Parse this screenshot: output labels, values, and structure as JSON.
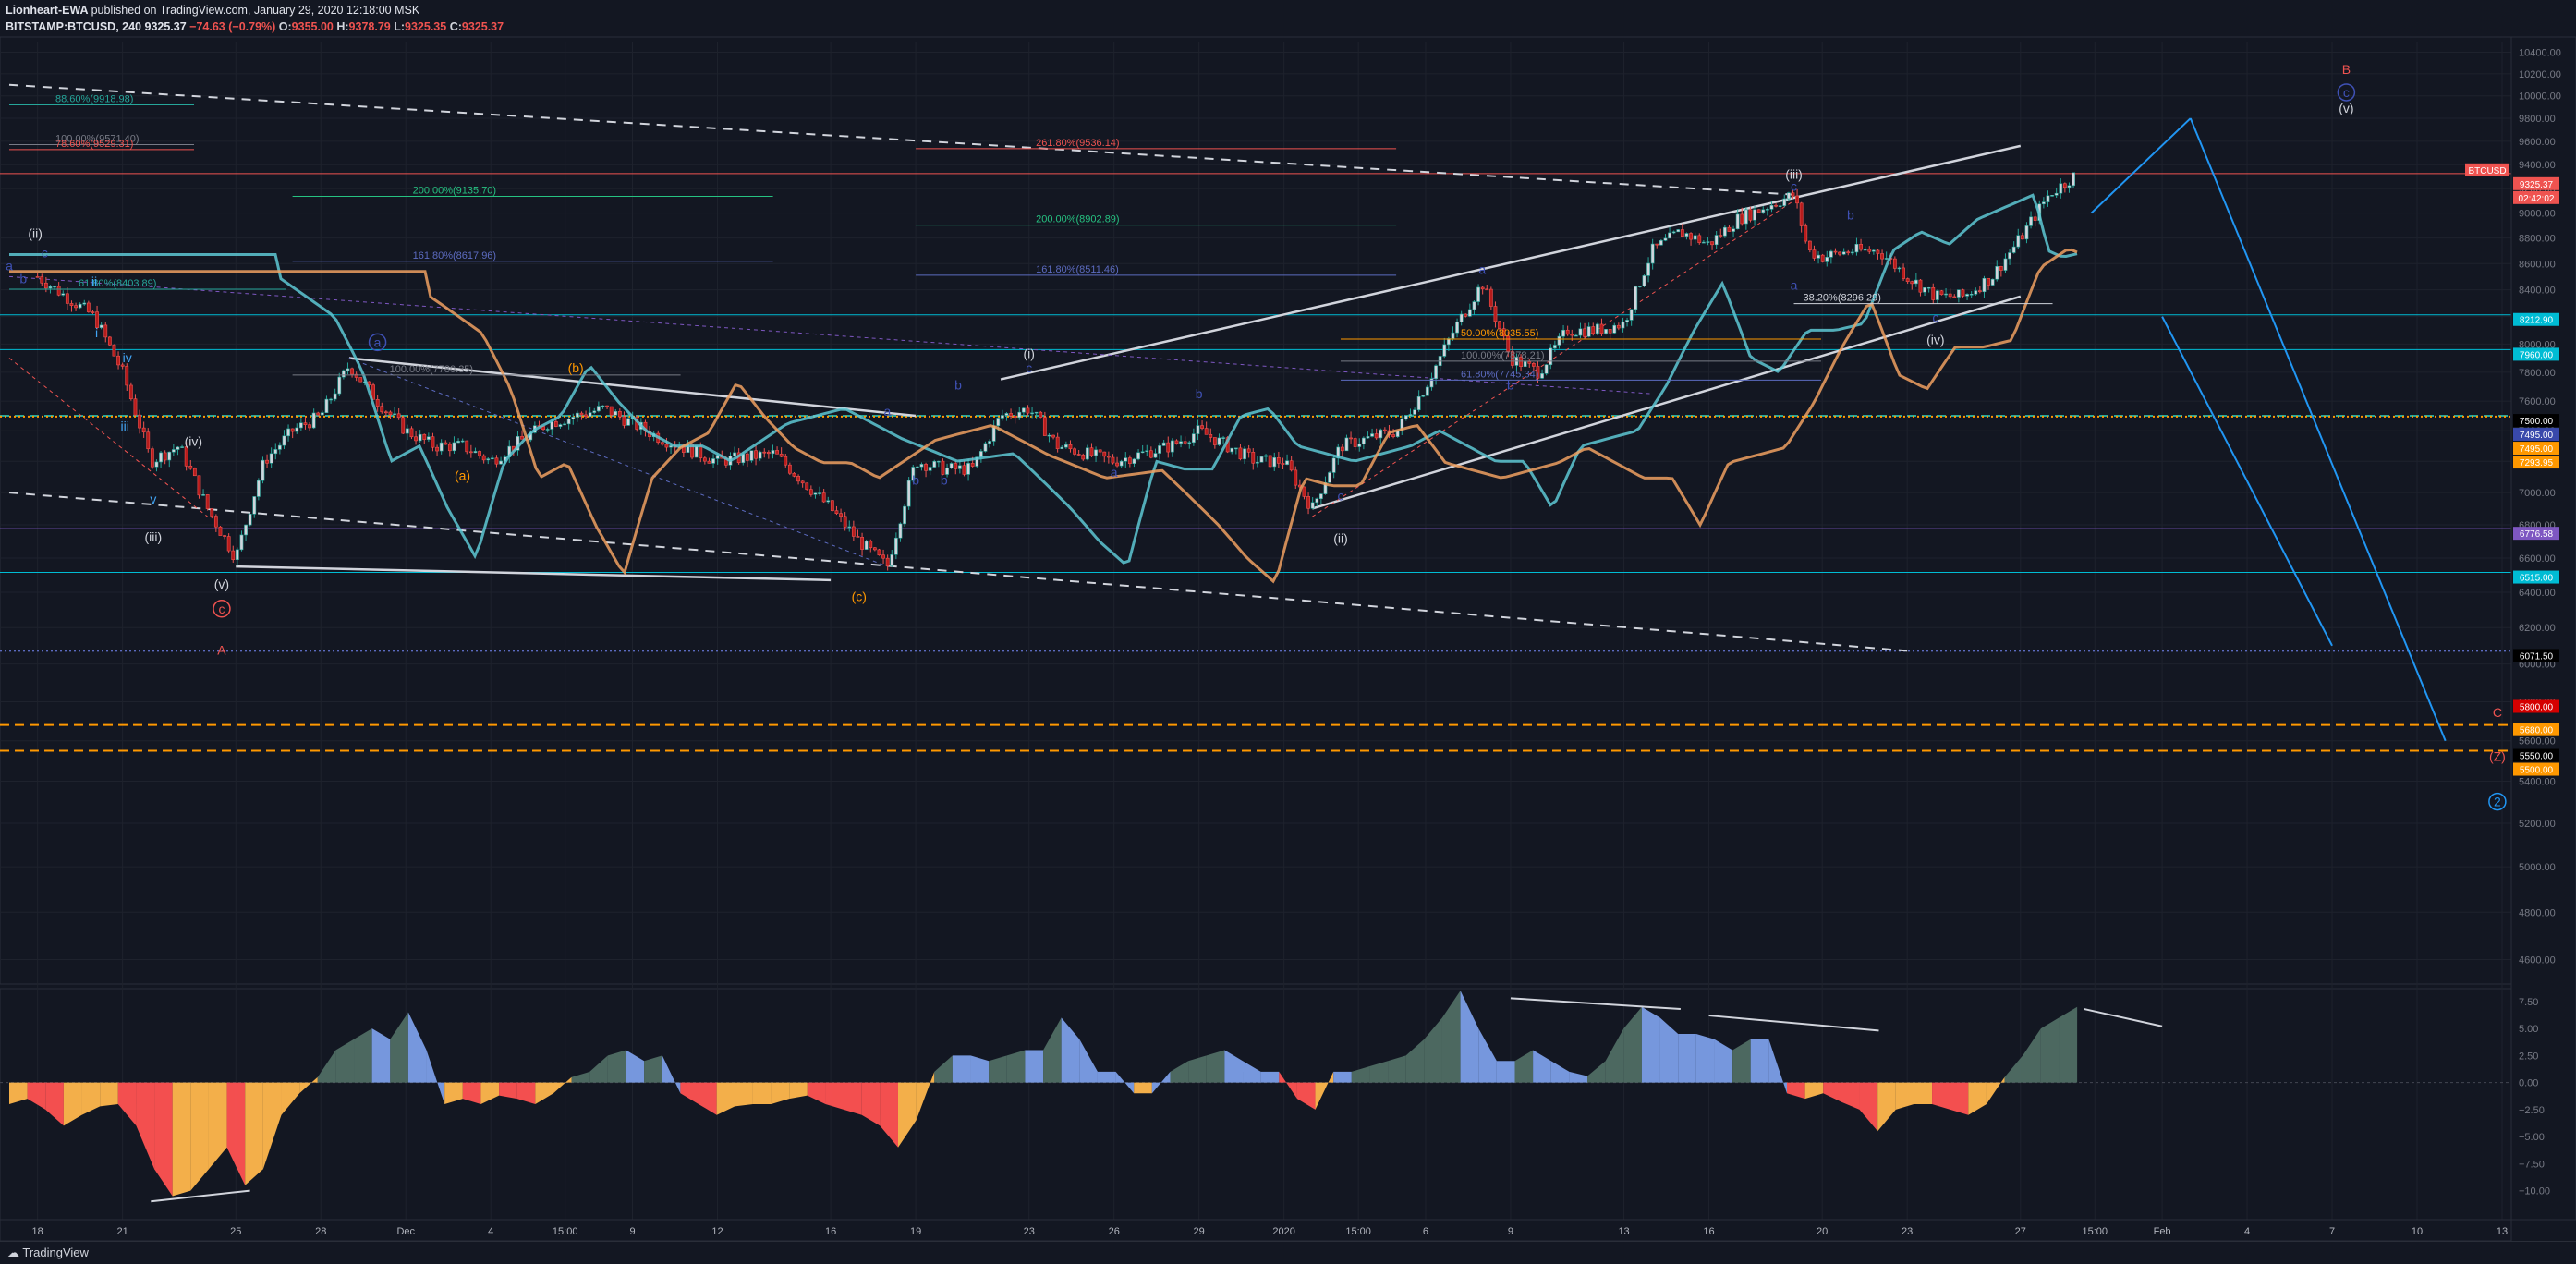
{
  "header": {
    "author": "Lionheart-EWA",
    "published": "published on TradingView.com, January 29, 2020 12:18:00 MSK",
    "symbol": "BITSTAMP:BTCUSD, 240",
    "last": "9325.37",
    "change": "−74.63 (−0.79%)",
    "o_label": "O:",
    "o": "9355.00",
    "h_label": "H:",
    "h": "9378.79",
    "l_label": "L:",
    "l": "9325.35",
    "c_label": "C:",
    "c": "9325.37"
  },
  "footer": {
    "brand": "TradingView"
  },
  "colors": {
    "background": "#131722",
    "grid": "#1e222d",
    "up_candle": "#26a69a",
    "down_candle": "#ef5350",
    "candle_body_up": "#d1d4dc",
    "candle_body_down": "#b71c1c",
    "ma_teal": "#5ec8d4",
    "ma_orange": "#f0a060",
    "osc_pos": "#4f6d64",
    "osc_pos_light": "#7b9ee8",
    "osc_neg": "#ff5252",
    "osc_neg_light": "#ffb74d"
  },
  "chart_data": [
    {
      "type": "candlestick",
      "title": "BITSTAMP:BTCUSD, 240",
      "y_scale": "log",
      "ylim": [
        4500,
        10500
      ],
      "y_ticks": [
        "10400.00",
        "10200.00",
        "10000.00",
        "9800.00",
        "9600.00",
        "9400.00",
        "9200.00",
        "9000.00",
        "8800.00",
        "8600.00",
        "8400.00",
        "8200.00",
        "8000.00",
        "7800.00",
        "7600.00",
        "7400.00",
        "7200.00",
        "7000.00",
        "6800.00",
        "6600.00",
        "6400.00",
        "6200.00",
        "6000.00",
        "5800.00",
        "5600.00",
        "5400.00",
        "5200.00",
        "5000.00",
        "4800.00",
        "4600.00"
      ],
      "x_ticks": [
        "18",
        "21",
        "25",
        "28",
        "Dec",
        "4",
        "15:00",
        "9",
        "12",
        "16",
        "19",
        "23",
        "26",
        "29",
        "2020",
        "15:00",
        "6",
        "9",
        "13",
        "16",
        "20",
        "23",
        "27",
        "15:00",
        "Feb",
        "4",
        "7",
        "10",
        "13"
      ],
      "price_path": [
        [
          "2019-11-18",
          8500
        ],
        [
          "2019-11-20",
          8200
        ],
        [
          "2019-11-21",
          7800
        ],
        [
          "2019-11-22",
          7200
        ],
        [
          "2019-11-23",
          7300
        ],
        [
          "2019-11-24",
          6900
        ],
        [
          "2019-11-25",
          6600
        ],
        [
          "2019-11-26",
          7200
        ],
        [
          "2019-11-27",
          7400
        ],
        [
          "2019-11-28",
          7500
        ],
        [
          "2019-11-29",
          7850
        ],
        [
          "2019-11-30",
          7600
        ],
        [
          "2019-12-01",
          7400
        ],
        [
          "2019-12-02",
          7300
        ],
        [
          "2019-12-03",
          7300
        ],
        [
          "2019-12-04",
          7200
        ],
        [
          "2019-12-06",
          7450
        ],
        [
          "2019-12-08",
          7550
        ],
        [
          "2019-12-10",
          7350
        ],
        [
          "2019-12-12",
          7200
        ],
        [
          "2019-12-14",
          7250
        ],
        [
          "2019-12-16",
          6900
        ],
        [
          "2019-12-17",
          6700
        ],
        [
          "2019-12-18",
          6550
        ],
        [
          "2019-12-19",
          7200
        ],
        [
          "2019-12-20",
          7150
        ],
        [
          "2019-12-21",
          7150
        ],
        [
          "2019-12-22",
          7500
        ],
        [
          "2019-12-23",
          7550
        ],
        [
          "2019-12-24",
          7300
        ],
        [
          "2019-12-26",
          7200
        ],
        [
          "2019-12-28",
          7300
        ],
        [
          "2019-12-29",
          7400
        ],
        [
          "2019-12-30",
          7300
        ],
        [
          "2019-12-31",
          7200
        ],
        [
          "2020-01-01",
          7200
        ],
        [
          "2020-01-02",
          6900
        ],
        [
          "2020-01-03",
          7300
        ],
        [
          "2020-01-04",
          7350
        ],
        [
          "2020-01-05",
          7400
        ],
        [
          "2020-01-06",
          7700
        ],
        [
          "2020-01-07",
          8100
        ],
        [
          "2020-01-08",
          8450
        ],
        [
          "2020-01-09",
          7900
        ],
        [
          "2020-01-10",
          7800
        ],
        [
          "2020-01-11",
          8100
        ],
        [
          "2020-01-12",
          8100
        ],
        [
          "2020-01-13",
          8150
        ],
        [
          "2020-01-14",
          8700
        ],
        [
          "2020-01-15",
          8850
        ],
        [
          "2020-01-16",
          8750
        ],
        [
          "2020-01-17",
          8950
        ],
        [
          "2020-01-18",
          9050
        ],
        [
          "2020-01-19",
          9150
        ],
        [
          "2020-01-19T12",
          8700
        ],
        [
          "2020-01-20",
          8650
        ],
        [
          "2020-01-21",
          8700
        ],
        [
          "2020-01-22",
          8700
        ],
        [
          "2020-01-23",
          8500
        ],
        [
          "2020-01-24",
          8350
        ],
        [
          "2020-01-25",
          8350
        ],
        [
          "2020-01-26",
          8500
        ],
        [
          "2020-01-27",
          8800
        ],
        [
          "2020-01-28",
          9150
        ],
        [
          "2020-01-29",
          9325
        ]
      ],
      "price_labels": [
        {
          "text": "BTCUSD",
          "bg": "#ef5350"
        },
        {
          "text": "9325.37",
          "bg": "#ef5350"
        },
        {
          "text": "02:42:02",
          "bg": "#ef5350"
        },
        {
          "text": "8212.90",
          "bg": "#00bcd4"
        },
        {
          "text": "7960.00",
          "bg": "#00bcd4"
        },
        {
          "text": "7500.00",
          "bg": "#000000"
        },
        {
          "text": "7495.00",
          "bg": "#3949ab"
        },
        {
          "text": "7495.00",
          "bg": "#ff9800"
        },
        {
          "text": "7293.95",
          "bg": "#ff9800"
        },
        {
          "text": "6776.58",
          "bg": "#7e57c2"
        },
        {
          "text": "6515.00",
          "bg": "#00bcd4"
        },
        {
          "text": "6071.50",
          "bg": "#000000"
        },
        {
          "text": "5800.00",
          "bg": "#d50000"
        },
        {
          "text": "5680.00",
          "bg": "#ff9800"
        },
        {
          "text": "5550.00",
          "bg": "#000000"
        },
        {
          "text": "5500.00",
          "bg": "#ff9800"
        }
      ],
      "horizontal_levels": [
        {
          "price": 8212.9,
          "color": "#00bcd4",
          "style": "solid"
        },
        {
          "price": 7960.0,
          "color": "#00bcd4",
          "style": "solid"
        },
        {
          "price": 7500.0,
          "color": "#26a69a",
          "style": "dashed"
        },
        {
          "price": 7495.0,
          "color": "#ff9800",
          "style": "dotted"
        },
        {
          "price": 6776.58,
          "color": "#7e57c2",
          "style": "solid"
        },
        {
          "price": 6515.0,
          "color": "#00bcd4",
          "style": "solid"
        },
        {
          "price": 6071.5,
          "color": "#5c6bc0",
          "style": "dotted"
        },
        {
          "price": 5680.0,
          "color": "#ff9800",
          "style": "dashed"
        },
        {
          "price": 5550.0,
          "color": "#ff9800",
          "style": "dashed"
        },
        {
          "price": 9325.37,
          "color": "#ef5350",
          "style": "solid"
        }
      ],
      "fib_labels": [
        {
          "text": "88.60%(9918.98)",
          "color": "#26a69a"
        },
        {
          "text": "100.00%(9571.40)",
          "color": "#787b86"
        },
        {
          "text": "78.60%(9529.31)",
          "color": "#ef5350"
        },
        {
          "text": "261.80%(9536.14)",
          "color": "#ef5350"
        },
        {
          "text": "200.00%(9135.70)",
          "color": "#26c281"
        },
        {
          "text": "200.00%(8902.89)",
          "color": "#26c281"
        },
        {
          "text": "161.80%(8617.96)",
          "color": "#5c6bc0"
        },
        {
          "text": "161.80%(8511.46)",
          "color": "#5c6bc0"
        },
        {
          "text": "61.80%(8403.89)",
          "color": "#26a69a"
        },
        {
          "text": "38.20%(8296.29)",
          "color": "#d1d4dc"
        },
        {
          "text": "100.00%(7878.21)",
          "color": "#787b86"
        },
        {
          "text": "100.00%(7780.35)",
          "color": "#787b86"
        },
        {
          "text": "50.00%(8035.55)",
          "color": "#ff9800"
        },
        {
          "text": "61.80%(7745.34)",
          "color": "#5c6bc0"
        }
      ],
      "wave_labels": [
        {
          "text": "(ii)",
          "color": "#d1d4dc"
        },
        {
          "text": "c",
          "color": "#3f51b5"
        },
        {
          "text": "a",
          "color": "#3f51b5"
        },
        {
          "text": "b",
          "color": "#3f51b5"
        },
        {
          "text": "ii",
          "color": "#42a5f5"
        },
        {
          "text": "i",
          "color": "#42a5f5"
        },
        {
          "text": "iv",
          "color": "#42a5f5"
        },
        {
          "text": "iii",
          "color": "#42a5f5"
        },
        {
          "text": "v",
          "color": "#42a5f5"
        },
        {
          "text": "(iv)",
          "color": "#d1d4dc"
        },
        {
          "text": "(iii)",
          "color": "#d1d4dc"
        },
        {
          "text": "(v)",
          "color": "#d1d4dc"
        },
        {
          "text": "c",
          "color": "#ef5350"
        },
        {
          "text": "A",
          "color": "#ef5350"
        },
        {
          "text": "a",
          "color": "#3f51b5"
        },
        {
          "text": "(b)",
          "color": "#ff9800"
        },
        {
          "text": "(a)",
          "color": "#ff9800"
        },
        {
          "text": "(c)",
          "color": "#ff9800"
        },
        {
          "text": "b",
          "color": "#3f51b5"
        },
        {
          "text": "a",
          "color": "#3f51b5"
        },
        {
          "text": "b",
          "color": "#3f51b5"
        },
        {
          "text": "(i)",
          "color": "#d1d4dc"
        },
        {
          "text": "c",
          "color": "#3f51b5"
        },
        {
          "text": "b",
          "color": "#3f51b5"
        },
        {
          "text": "a",
          "color": "#3f51b5"
        },
        {
          "text": "b",
          "color": "#3f51b5"
        },
        {
          "text": "c",
          "color": "#3f51b5"
        },
        {
          "text": "(ii)",
          "color": "#d1d4dc"
        },
        {
          "text": "a",
          "color": "#3f51b5"
        },
        {
          "text": "b",
          "color": "#3f51b5"
        },
        {
          "text": "(iii)",
          "color": "#d1d4dc"
        },
        {
          "text": "c",
          "color": "#3f51b5"
        },
        {
          "text": "a",
          "color": "#3f51b5"
        },
        {
          "text": "b",
          "color": "#3f51b5"
        },
        {
          "text": "c",
          "color": "#3f51b5"
        },
        {
          "text": "(iv)",
          "color": "#d1d4dc"
        },
        {
          "text": "B",
          "color": "#ef5350"
        },
        {
          "text": "c",
          "color": "#3f51b5"
        },
        {
          "text": "(v)",
          "color": "#d1d4dc"
        },
        {
          "text": "C",
          "color": "#ef5350"
        },
        {
          "text": "(Z)",
          "color": "#ef5350"
        },
        {
          "text": "2",
          "color": "#2196f3"
        }
      ]
    },
    {
      "type": "area",
      "title": "",
      "ylim": [
        -12,
        8
      ],
      "y_ticks": [
        "7.50",
        "5.00",
        "2.50",
        "0.00",
        "−2.50",
        "−5.00",
        "−7.50",
        "−10.00"
      ],
      "values": [
        -2,
        -1.5,
        -2.5,
        -4,
        -3,
        -2.2,
        -2,
        -4,
        -8,
        -10.5,
        -10,
        -8,
        -6,
        -9.5,
        -8,
        -3,
        -1,
        0.5,
        3,
        4,
        5,
        4,
        6.5,
        3,
        -2,
        -1.5,
        -2,
        -1.2,
        -1.5,
        -2,
        -1,
        0.5,
        1,
        2.5,
        3,
        2,
        2.5,
        -1,
        -2,
        -3,
        -2.2,
        -2,
        -2,
        -1.5,
        -1.2,
        -2,
        -2.5,
        -3,
        -4,
        -6,
        -3.5,
        1,
        2.5,
        2.5,
        2,
        2.5,
        3,
        3,
        6,
        4,
        1,
        1,
        -1,
        -1,
        1,
        2,
        2.5,
        3,
        2,
        1,
        1,
        -1.5,
        -2.5,
        1,
        1,
        1.5,
        2,
        2.5,
        4,
        6,
        8.5,
        5,
        2,
        2,
        3,
        2,
        1,
        0.6,
        2,
        5,
        7,
        6,
        4.5,
        4.5,
        4,
        3,
        4,
        4,
        -1,
        -1.5,
        -1,
        -1.8,
        -2.5,
        -4.5,
        -2.5,
        -2,
        -2,
        -2.5,
        -3,
        -2,
        0.5,
        2.5,
        5,
        6,
        7
      ]
    }
  ]
}
